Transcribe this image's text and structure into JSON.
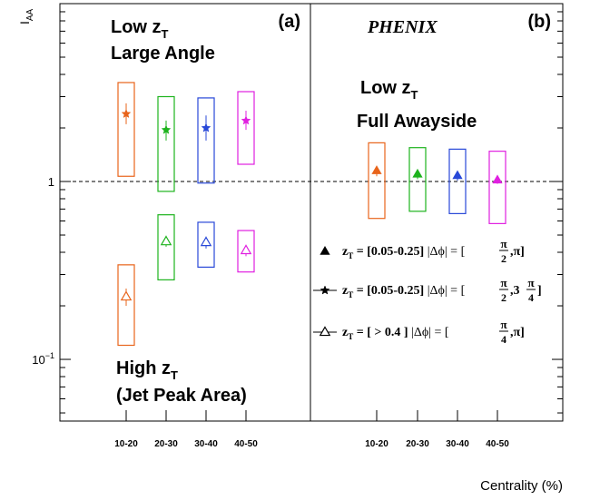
{
  "chart_data": {
    "type": "scatter",
    "scale": "log",
    "ylabel": "I",
    "ylabel_sub": "AA",
    "xlabel": "Centrality (%)",
    "ylim": [
      0.045,
      10
    ],
    "y_ticks": [
      {
        "value": 1,
        "label": "1"
      },
      {
        "value": 0.1,
        "label": "10",
        "sup": "−1"
      }
    ],
    "reference_line": 1,
    "panels": [
      {
        "id": "a",
        "tag": "(a)",
        "categories": [
          "10-20",
          "20-30",
          "30-40",
          "40-50"
        ],
        "annotations": {
          "low_line1": "Low z",
          "low_sub": "T",
          "low_line2": "Large Angle",
          "high_line1": "High z",
          "high_sub": "T",
          "high_line2": "(Jet Peak Area)"
        },
        "series": [
          {
            "marker": "star",
            "values": [
              2.4,
              1.95,
              2.0,
              2.2
            ],
            "stat_lo": [
              2.1,
              1.7,
              1.7,
              1.95
            ],
            "stat_hi": [
              2.75,
              2.2,
              2.35,
              2.5
            ],
            "sys_lo": [
              1.07,
              0.88,
              0.98,
              1.25
            ],
            "sys_hi": [
              3.6,
              3.0,
              2.95,
              3.2
            ]
          },
          {
            "marker": "open-triangle",
            "values": [
              0.225,
              0.46,
              0.455,
              0.41
            ],
            "stat_lo": [
              0.2,
              0.43,
              0.42,
              0.38
            ],
            "stat_hi": [
              0.25,
              0.495,
              0.49,
              0.44
            ],
            "sys_lo": [
              0.12,
              0.28,
              0.33,
              0.31
            ],
            "sys_hi": [
              0.34,
              0.65,
              0.59,
              0.53
            ]
          }
        ]
      },
      {
        "id": "b",
        "tag": "(b)",
        "experiment": "PHENIX",
        "categories": [
          "10-20",
          "20-30",
          "30-40",
          "40-50"
        ],
        "annotations": {
          "low_line1": "Low z",
          "low_sub": "T",
          "low_line2": "Full Awayside"
        },
        "series": [
          {
            "marker": "filled-triangle",
            "values": [
              1.15,
              1.1,
              1.08,
              1.02
            ],
            "stat_lo": [
              1.07,
              1.03,
              1.01,
              0.97
            ],
            "stat_hi": [
              1.22,
              1.17,
              1.14,
              1.07
            ],
            "sys_lo": [
              0.62,
              0.68,
              0.66,
              0.58
            ],
            "sys_hi": [
              1.65,
              1.55,
              1.52,
              1.48
            ]
          }
        ]
      }
    ],
    "colors": [
      "#e8641b",
      "#1db31d",
      "#2848d8",
      "#e020e0"
    ],
    "legend": {
      "placement": "right",
      "entries": [
        {
          "marker": "filled-triangle",
          "zt_label": "[0.05-0.25]",
          "phi_num": "π",
          "phi_den": "2",
          "phi_tail": ",π]"
        },
        {
          "marker": "star",
          "zt_label": "[0.05-0.25]",
          "phi_num": "π",
          "phi_den": "2",
          "phi_mid": ",3",
          "phi_num2": "π",
          "phi_den2": "4",
          "phi_tail": "]"
        },
        {
          "marker": "open-triangle",
          "zt_label": "[  > 0.4  ]",
          "phi_num": "π",
          "phi_den": "4",
          "phi_tail": ",π]"
        }
      ],
      "zt_prefix": "z",
      "zt_sub": "T",
      "zt_eq": " = ",
      "phi_prefix": "|Δϕ| = ["
    }
  }
}
